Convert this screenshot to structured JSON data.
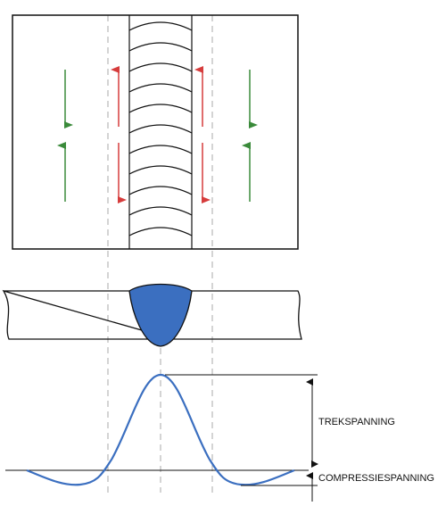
{
  "labels": {
    "tensile": "TREKSPANNING",
    "compressive": "COMPRESSIESPANNING"
  }
}
